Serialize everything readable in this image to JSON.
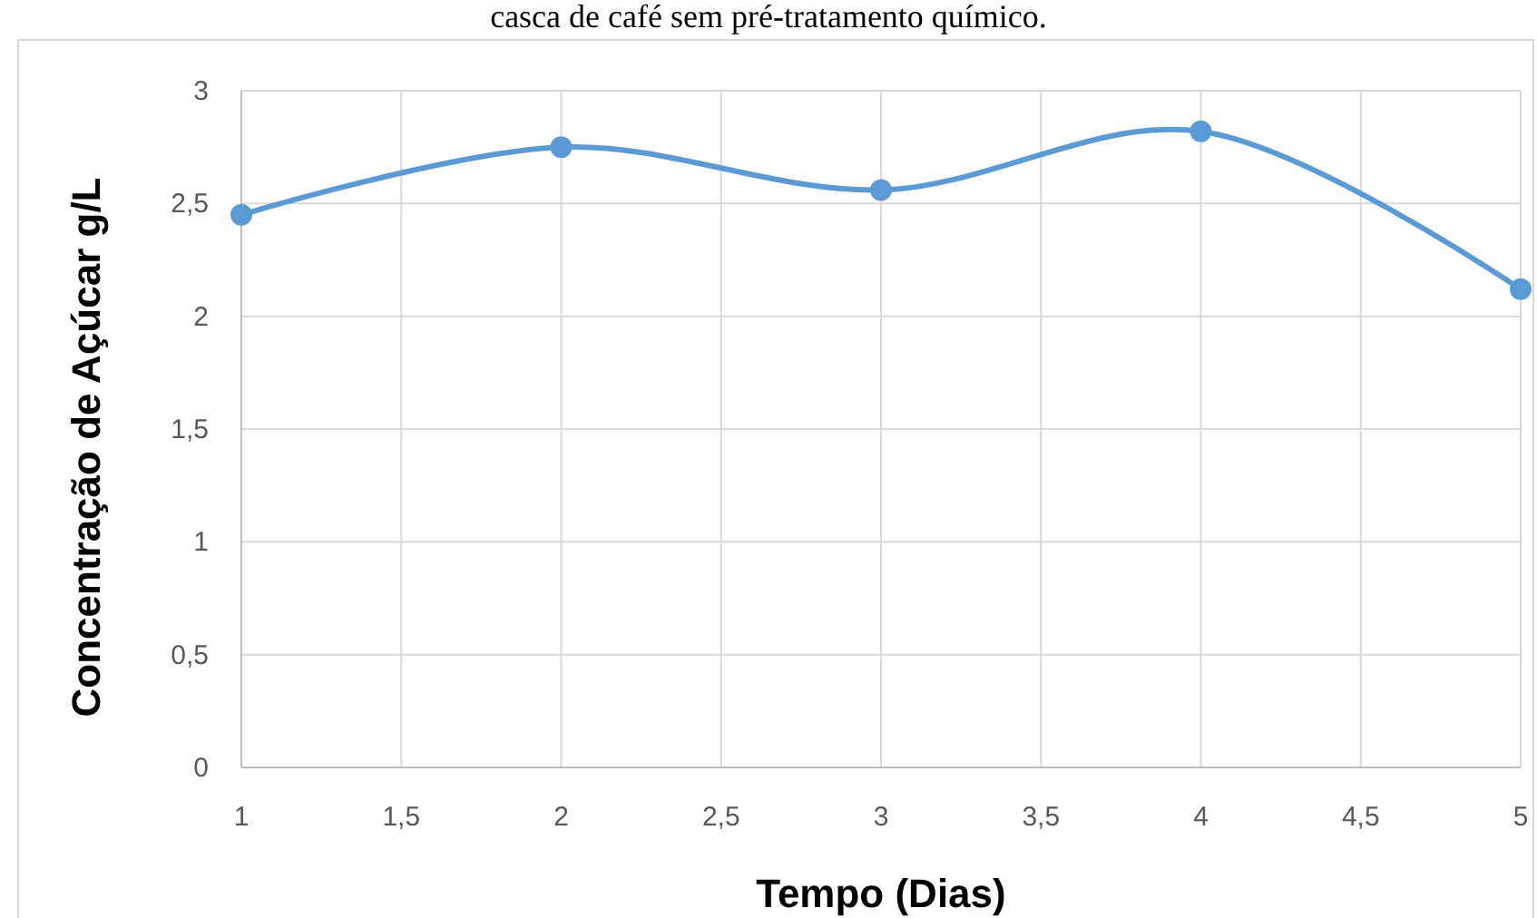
{
  "chart_data": {
    "type": "line",
    "title": "casca de café sem pré-tratamento químico.",
    "xlabel": "Tempo (Dias)",
    "ylabel": "Concentração de Açúcar g/L",
    "x": [
      1,
      2,
      3,
      4,
      5
    ],
    "series": [
      {
        "color": "#5b9bd5",
        "values": [
          2.45,
          2.75,
          2.56,
          2.82,
          2.12
        ]
      }
    ],
    "xlim": [
      1,
      5
    ],
    "xticks": [
      1,
      {
        "value": 1.5,
        "label": "1,5"
      },
      2,
      {
        "value": 2.5,
        "label": "2,5"
      },
      3,
      {
        "value": 3.5,
        "label": "3,5"
      },
      4,
      {
        "value": 4.5,
        "label": "4,5"
      },
      5
    ],
    "ylim": [
      0,
      3
    ],
    "yticks": [
      0,
      {
        "value": 0.5,
        "label": "0,5"
      },
      1,
      {
        "value": 1.5,
        "label": "1,5"
      },
      2,
      {
        "value": 2.5,
        "label": "2,5"
      },
      3
    ],
    "grid": true,
    "marker": "circle",
    "line_style": "solid"
  }
}
